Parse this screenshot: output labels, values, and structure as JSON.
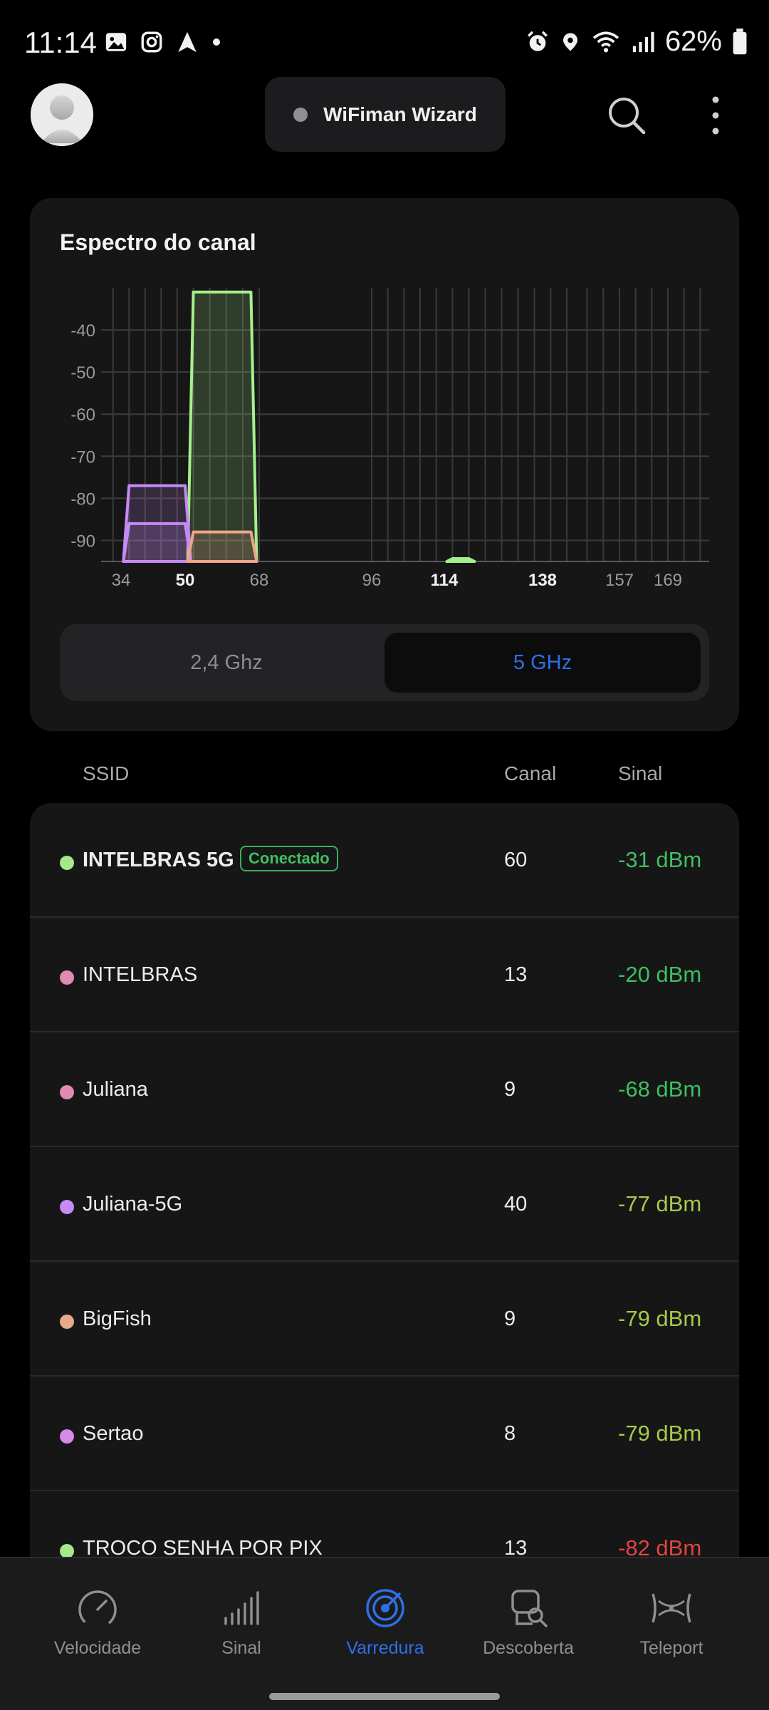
{
  "status_bar": {
    "time": "11:14",
    "battery": "62%",
    "left_icons": [
      "gallery-icon",
      "instagram-icon",
      "navigation-icon",
      "dot-icon"
    ],
    "right_icons": [
      "alarm-icon",
      "location-icon",
      "wifi-icon",
      "cell-signal-icon",
      "battery-icon"
    ]
  },
  "header": {
    "wizard_label": "WiFiman Wizard",
    "icons": [
      "avatar",
      "search-icon",
      "more-vert-icon"
    ]
  },
  "spectrum": {
    "title": "Espectro do canal",
    "y_ticks": [
      "-40",
      "-50",
      "-60",
      "-70",
      "-80",
      "-90"
    ],
    "x_ticks": [
      {
        "label": "34",
        "bold": false
      },
      {
        "label": "50",
        "bold": true
      },
      {
        "label": "68",
        "bold": false
      },
      {
        "label": "96",
        "bold": false
      },
      {
        "label": "114",
        "bold": true
      },
      {
        "label": "138",
        "bold": true
      },
      {
        "label": "157",
        "bold": false
      },
      {
        "label": "169",
        "bold": false
      }
    ],
    "band_options": [
      "2,4 Ghz",
      "5 GHz"
    ],
    "selected_band": "5 GHz"
  },
  "chart_data": {
    "type": "area",
    "y_axis": "dBm",
    "ylim": [
      -95,
      -30
    ],
    "x_ticks": [
      "34",
      "50",
      "68",
      "96",
      "114",
      "138",
      "157",
      "169"
    ],
    "series": [
      {
        "color": "#a6f08c",
        "channel_range": [
          52,
          66
        ],
        "value": -31
      },
      {
        "color": "#c58af5",
        "channel_range": [
          36,
          50
        ],
        "value": -77
      },
      {
        "color": "#c58af5",
        "channel_range": [
          36,
          50
        ],
        "value": -86
      },
      {
        "color": "#f0a48a",
        "channel_range": [
          52,
          66
        ],
        "value": -88
      },
      {
        "color": "#a6f08c",
        "channel_range": [
          116,
          120
        ],
        "value": -95
      }
    ]
  },
  "table": {
    "headers": {
      "ssid": "SSID",
      "canal": "Canal",
      "sinal": "Sinal"
    },
    "rows": [
      {
        "ssid": "INTELBRAS 5G",
        "badge": "Conectado",
        "canal": "60",
        "signal": "-31 dBm",
        "dot_color": "#a6e88a",
        "signal_color": "#3fbf5f"
      },
      {
        "ssid": "INTELBRAS",
        "canal": "13",
        "signal": "-20 dBm",
        "dot_color": "#e08ab4",
        "signal_color": "#3fbf5f"
      },
      {
        "ssid": "Juliana",
        "canal": "9",
        "signal": "-68 dBm",
        "dot_color": "#e08ab4",
        "signal_color": "#3fbf5f"
      },
      {
        "ssid": "Juliana-5G",
        "canal": "40",
        "signal": "-77 dBm",
        "dot_color": "#c58af5",
        "signal_color": "#a8c94a"
      },
      {
        "ssid": "BigFish",
        "canal": "9",
        "signal": "-79 dBm",
        "dot_color": "#e8a98a",
        "signal_color": "#a8c94a"
      },
      {
        "ssid": "Sertao",
        "canal": "8",
        "signal": "-79 dBm",
        "dot_color": "#d88ae8",
        "signal_color": "#a8c94a"
      },
      {
        "ssid": "TROCO SENHA POR PIX",
        "canal": "13",
        "signal": "-82 dBm",
        "dot_color": "#a6e88a",
        "signal_color": "#e0453f"
      }
    ]
  },
  "bottom_nav": {
    "items": [
      {
        "label": "Velocidade",
        "icon": "speedometer-icon"
      },
      {
        "label": "Sinal",
        "icon": "signal-bars-icon"
      },
      {
        "label": "Varredura",
        "icon": "radar-icon"
      },
      {
        "label": "Descoberta",
        "icon": "discovery-icon"
      },
      {
        "label": "Teleport",
        "icon": "teleport-icon"
      }
    ],
    "active": "Varredura"
  },
  "colors": {
    "accent": "#2f6fe6",
    "good": "#3fbf5f",
    "ok": "#a8c94a",
    "bad": "#e0453f"
  }
}
